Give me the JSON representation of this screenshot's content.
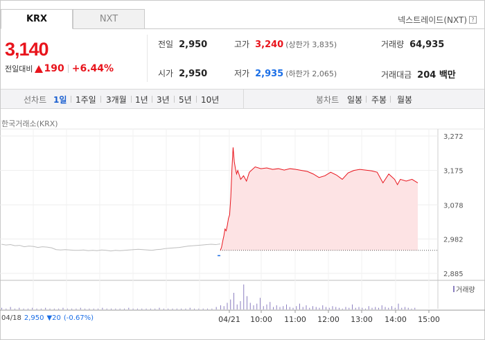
{
  "tabs": [
    {
      "label": "KRX",
      "active": true
    },
    {
      "label": "NXT",
      "active": false
    }
  ],
  "nxt_link": "넥스트레이드(NXT)",
  "help_icon_glyph": "?",
  "price": {
    "current": "3,140",
    "change_label": "전일대비",
    "change_value": "190",
    "change_percent": "+6.44%",
    "direction": "up"
  },
  "stats": {
    "prev": {
      "label": "전일",
      "value": "2,950"
    },
    "open": {
      "label": "시가",
      "value": "2,950"
    },
    "high": {
      "label": "고가",
      "value": "3,240",
      "sub": "(상한가 3,835)"
    },
    "low": {
      "label": "저가",
      "value": "2,935",
      "sub": "(하한가 2,065)"
    },
    "volume": {
      "label": "거래량",
      "value": "64,935"
    },
    "amount": {
      "label": "거래대금",
      "value": "204 백만"
    }
  },
  "period_bar": {
    "line_label": "선차트",
    "periods": [
      "1일",
      "1주일",
      "3개월",
      "1년",
      "3년",
      "5년",
      "10년"
    ],
    "active_period": "1일",
    "candle_label": "봉차트",
    "candles": [
      "일봉",
      "주봉",
      "월봉"
    ]
  },
  "market_label": "한국거래소(KRX)",
  "volume_legend": "거래량",
  "bottom_info": {
    "date": "04/18",
    "price": "2,950",
    "change": "▼20",
    "pct": "(-0.67%)"
  },
  "colors": {
    "up": "#e8141c",
    "down": "#1a6ee6",
    "area_fill": "#fde3e4",
    "prev_line": "#bdbdbd",
    "volume_bar": "#8b7fc0"
  },
  "chart_data": {
    "type": "line",
    "y_ticks": [
      "3,272",
      "3,175",
      "3,078",
      "2,982",
      "2,885"
    ],
    "y_tick_values": [
      3272,
      3175,
      3078,
      2982,
      2885
    ],
    "ylim": [
      2885,
      3272
    ],
    "prev_close": 2950,
    "x_ticks": [
      "04/21",
      "10:00",
      "11:00",
      "12:00",
      "13:00",
      "14:00",
      "15:00"
    ],
    "grid": true,
    "previous_day": [
      2967,
      2965,
      2966,
      2963,
      2964,
      2960,
      2962,
      2961,
      2958,
      2960,
      2959,
      2957,
      2952,
      2951,
      2952,
      2951,
      2950,
      2950,
      2951,
      2949,
      2950,
      2949,
      2951,
      2950,
      2948,
      2950,
      2949,
      2950,
      2951,
      2952,
      2953,
      2952,
      2951,
      2950,
      2952,
      2953,
      2955,
      2956,
      2957,
      2958,
      2960,
      2962,
      2963,
      2964,
      2965,
      2966,
      2967,
      2966,
      2968
    ],
    "today": [
      {
        "t": "09:00",
        "v": 2950
      },
      {
        "t": "09:02",
        "v": 2958
      },
      {
        "t": "09:04",
        "v": 2975
      },
      {
        "t": "09:06",
        "v": 2990
      },
      {
        "t": "09:08",
        "v": 3010
      },
      {
        "t": "09:10",
        "v": 3005
      },
      {
        "t": "09:12",
        "v": 3020
      },
      {
        "t": "09:14",
        "v": 3040
      },
      {
        "t": "09:16",
        "v": 3050
      },
      {
        "t": "09:18",
        "v": 3100
      },
      {
        "t": "09:20",
        "v": 3180
      },
      {
        "t": "09:22",
        "v": 3240
      },
      {
        "t": "09:24",
        "v": 3200
      },
      {
        "t": "09:26",
        "v": 3180
      },
      {
        "t": "09:28",
        "v": 3165
      },
      {
        "t": "09:30",
        "v": 3175
      },
      {
        "t": "09:35",
        "v": 3150
      },
      {
        "t": "09:40",
        "v": 3160
      },
      {
        "t": "09:45",
        "v": 3145
      },
      {
        "t": "09:50",
        "v": 3170
      },
      {
        "t": "10:00",
        "v": 3185
      },
      {
        "t": "10:10",
        "v": 3180
      },
      {
        "t": "10:20",
        "v": 3182
      },
      {
        "t": "10:30",
        "v": 3178
      },
      {
        "t": "10:40",
        "v": 3180
      },
      {
        "t": "10:50",
        "v": 3176
      },
      {
        "t": "11:00",
        "v": 3180
      },
      {
        "t": "11:10",
        "v": 3178
      },
      {
        "t": "11:20",
        "v": 3175
      },
      {
        "t": "11:30",
        "v": 3172
      },
      {
        "t": "11:40",
        "v": 3165
      },
      {
        "t": "11:50",
        "v": 3155
      },
      {
        "t": "12:00",
        "v": 3160
      },
      {
        "t": "12:10",
        "v": 3170
      },
      {
        "t": "12:20",
        "v": 3162
      },
      {
        "t": "12:30",
        "v": 3150
      },
      {
        "t": "12:40",
        "v": 3168
      },
      {
        "t": "12:50",
        "v": 3175
      },
      {
        "t": "13:00",
        "v": 3178
      },
      {
        "t": "13:10",
        "v": 3176
      },
      {
        "t": "13:20",
        "v": 3174
      },
      {
        "t": "13:30",
        "v": 3170
      },
      {
        "t": "13:40",
        "v": 3140
      },
      {
        "t": "13:50",
        "v": 3165
      },
      {
        "t": "14:00",
        "v": 3150
      },
      {
        "t": "14:05",
        "v": 3135
      },
      {
        "t": "14:10",
        "v": 3150
      },
      {
        "t": "14:20",
        "v": 3145
      },
      {
        "t": "14:30",
        "v": 3150
      },
      {
        "t": "14:40",
        "v": 3140
      }
    ],
    "volume": [
      2,
      1,
      3,
      1,
      2,
      1,
      1,
      2,
      1,
      1,
      2,
      1,
      1,
      1,
      2,
      1,
      1,
      1,
      2,
      1,
      1,
      1,
      1,
      2,
      1,
      1,
      1,
      1,
      1,
      2,
      1,
      1,
      1,
      1,
      1,
      1,
      2,
      1,
      1,
      1,
      1,
      1,
      1,
      2,
      1,
      1,
      1,
      1,
      1,
      3,
      5,
      4,
      8,
      12,
      20,
      6,
      10,
      30,
      16,
      8,
      5,
      7,
      14,
      4,
      6,
      9,
      3,
      5,
      3,
      4,
      6,
      3,
      2,
      4,
      7,
      3,
      5,
      2,
      4,
      3,
      2,
      5,
      3,
      2,
      4,
      3,
      2,
      1,
      3,
      2,
      6,
      2,
      3,
      2,
      1,
      4,
      2,
      3,
      2,
      5,
      3,
      2,
      4,
      2,
      7,
      2,
      3,
      2,
      1,
      2
    ]
  }
}
